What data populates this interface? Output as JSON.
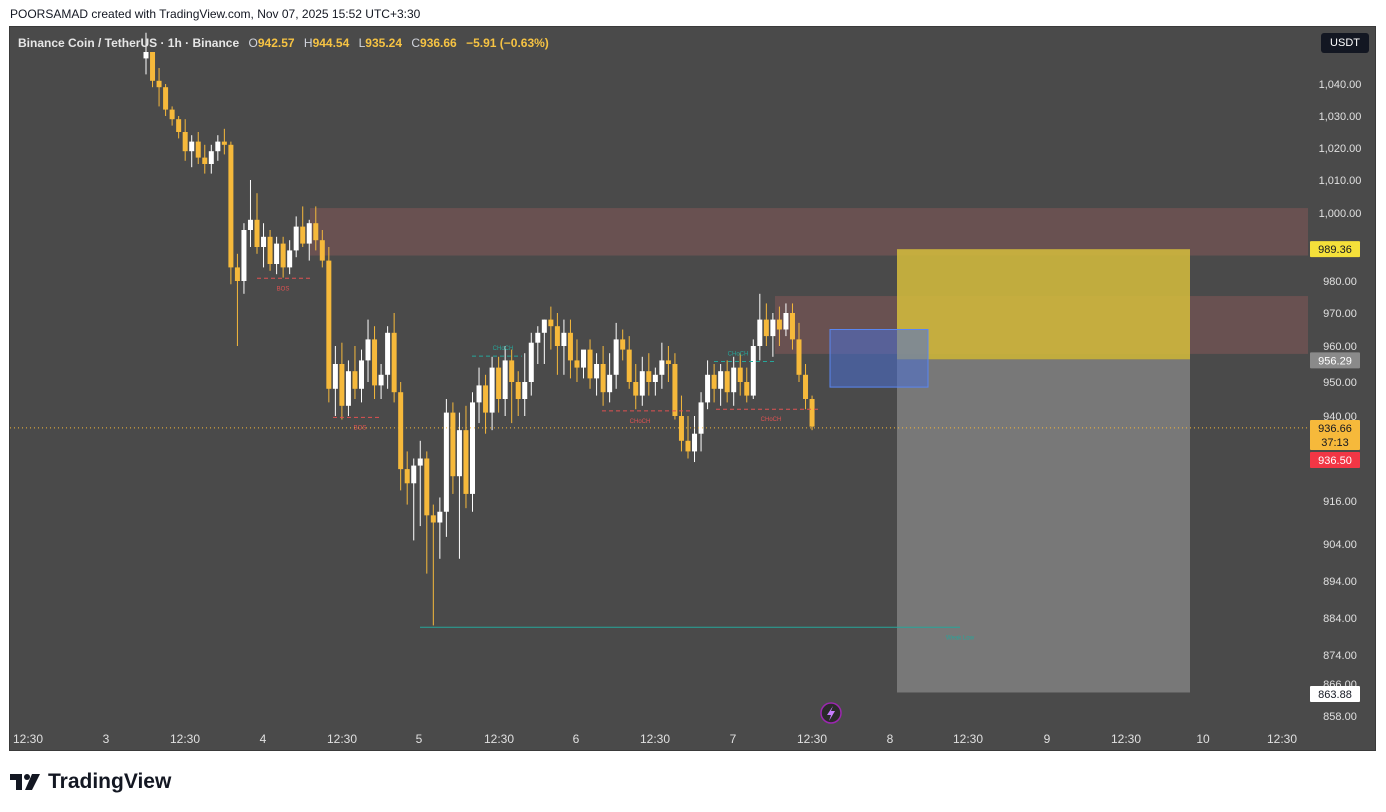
{
  "header": {
    "attribution": "POORSAMAD created with TradingView.com, Nov 07, 2025 15:52 UTC+3:30"
  },
  "legend": {
    "symbol": "Binance Coin / TetherUS · 1h · Binance",
    "o_label": "O",
    "o": "942.57",
    "h_label": "H",
    "h": "944.54",
    "l_label": "L",
    "l": "935.24",
    "c_label": "C",
    "c": "936.66",
    "change": "−5.91 (−0.63%)"
  },
  "currency_button": "USDT",
  "brand": "TradingView",
  "colors": {
    "up": "#ffffff",
    "down": "#f6b93b",
    "zone": "#6e5252",
    "long_box": "#d6bd3c",
    "stop_box": "#7a7a7a",
    "fvg": "#4a6fd3",
    "bg": "#4a4a4a"
  },
  "chart_data": {
    "type": "candlestick",
    "symbol": "BNBUSDT",
    "interval": "1h",
    "x_tick_labels": [
      "12:30",
      "3",
      "12:30",
      "4",
      "12:30",
      "5",
      "12:30",
      "6",
      "12:30",
      "7",
      "12:30",
      "8",
      "12:30",
      "9",
      "12:30",
      "10",
      "12:30"
    ],
    "y_tick_labels": [
      "1,040.00",
      "1,030.00",
      "1,020.00",
      "1,010.00",
      "1,000.00",
      "980.00",
      "970.00",
      "960.00",
      "950.00",
      "940.00",
      "916.00",
      "904.00",
      "894.00",
      "884.00",
      "874.00",
      "866.00",
      "858.00"
    ],
    "price_tags": [
      {
        "value": "989.36",
        "kind": "target"
      },
      {
        "value": "956.29",
        "kind": "entry"
      },
      {
        "value": "936.66",
        "kind": "last"
      },
      {
        "value": "37:13",
        "kind": "countdown"
      },
      {
        "value": "936.50",
        "kind": "bid"
      },
      {
        "value": "863.88",
        "kind": "stop"
      }
    ],
    "annotations": [
      {
        "text": "BOS",
        "price": 980.8
      },
      {
        "text": "BOS",
        "price": 939.6
      },
      {
        "text": "CHoCH",
        "price": 957.2
      },
      {
        "text": "CHoCH",
        "price": 941.5
      },
      {
        "text": "CHoCH",
        "price": 955.7
      },
      {
        "text": "CHoCH",
        "price": 942.0
      },
      {
        "text": "Weak Low",
        "price": 881.5
      }
    ],
    "zones": [
      {
        "name": "supply-zone-1",
        "from": 987.5,
        "to": 1001.5
      },
      {
        "name": "supply-zone-2",
        "from": 957.8,
        "to": 975.3
      },
      {
        "name": "fvg-box",
        "from": 948.5,
        "to": 965.0
      },
      {
        "name": "take-profit-box",
        "from": 956.29,
        "to": 989.36
      },
      {
        "name": "stop-box",
        "from": 863.88,
        "to": 956.29
      }
    ],
    "candles": [
      [
        1048,
        1056,
        1043,
        1050
      ],
      [
        1050,
        1050,
        1039,
        1041
      ],
      [
        1041,
        1045,
        1033,
        1039
      ],
      [
        1039,
        1040,
        1030,
        1032
      ],
      [
        1032,
        1033,
        1027,
        1029
      ],
      [
        1029,
        1030,
        1023,
        1025
      ],
      [
        1025,
        1029,
        1016,
        1019
      ],
      [
        1019,
        1024,
        1014,
        1022
      ],
      [
        1022,
        1025,
        1015,
        1017
      ],
      [
        1017,
        1021,
        1012,
        1015
      ],
      [
        1015,
        1021,
        1012,
        1019
      ],
      [
        1019,
        1024,
        1016,
        1022
      ],
      [
        1022,
        1026,
        1018,
        1021
      ],
      [
        1021,
        1022,
        979,
        984
      ],
      [
        984,
        988,
        960,
        980
      ],
      [
        980,
        997,
        976,
        995
      ],
      [
        995,
        1010,
        990,
        998
      ],
      [
        998,
        1006,
        988,
        990
      ],
      [
        990,
        997,
        984,
        993
      ],
      [
        993,
        995,
        983,
        985
      ],
      [
        985,
        993,
        982,
        991
      ],
      [
        991,
        993,
        981,
        984
      ],
      [
        984,
        992,
        982,
        989
      ],
      [
        989,
        999,
        987,
        996
      ],
      [
        996,
        1002,
        990,
        991
      ],
      [
        991,
        998,
        986,
        997
      ],
      [
        997,
        1002,
        989,
        992
      ],
      [
        992,
        995,
        984,
        986
      ],
      [
        986,
        990,
        944,
        948
      ],
      [
        948,
        960,
        940,
        955
      ],
      [
        955,
        961,
        939,
        943
      ],
      [
        943,
        956,
        940,
        953
      ],
      [
        953,
        960,
        945,
        948
      ],
      [
        948,
        959,
        944,
        956
      ],
      [
        956,
        968,
        950,
        962
      ],
      [
        962,
        966,
        945,
        949
      ],
      [
        949,
        955,
        945,
        952
      ],
      [
        952,
        966,
        948,
        964
      ],
      [
        964,
        970,
        944,
        947
      ],
      [
        947,
        950,
        919,
        925
      ],
      [
        925,
        930,
        915,
        921
      ],
      [
        921,
        928,
        905,
        926
      ],
      [
        926,
        933,
        909,
        928
      ],
      [
        928,
        930,
        896,
        912
      ],
      [
        912,
        915,
        882,
        910
      ],
      [
        910,
        917,
        900,
        913
      ],
      [
        913,
        945,
        906,
        941
      ],
      [
        941,
        944,
        918,
        923
      ],
      [
        923,
        941,
        900,
        936
      ],
      [
        936,
        943,
        914,
        918
      ],
      [
        918,
        947,
        913,
        944
      ],
      [
        944,
        954,
        938,
        949
      ],
      [
        949,
        952,
        935,
        941
      ],
      [
        941,
        957,
        936,
        954
      ],
      [
        954,
        957,
        941,
        945
      ],
      [
        945,
        960,
        940,
        956
      ],
      [
        956,
        959,
        938,
        950
      ],
      [
        950,
        953,
        940,
        945
      ],
      [
        945,
        958,
        940,
        950
      ],
      [
        950,
        964,
        946,
        961
      ],
      [
        961,
        966,
        955,
        964
      ],
      [
        964,
        968,
        955,
        968
      ],
      [
        968,
        972,
        959,
        966
      ],
      [
        966,
        970,
        952,
        960
      ],
      [
        960,
        968,
        952,
        964
      ],
      [
        964,
        968,
        951,
        956
      ],
      [
        956,
        962,
        950,
        954
      ],
      [
        954,
        958,
        951,
        959
      ],
      [
        959,
        962,
        948,
        951
      ],
      [
        951,
        958,
        946,
        955
      ],
      [
        955,
        960,
        943,
        947
      ],
      [
        947,
        958,
        944,
        952
      ],
      [
        952,
        967,
        948,
        962
      ],
      [
        962,
        965,
        956,
        959
      ],
      [
        959,
        963,
        948,
        950
      ],
      [
        950,
        955,
        942,
        946
      ],
      [
        946,
        957,
        943,
        953
      ],
      [
        953,
        958,
        946,
        950
      ],
      [
        950,
        954,
        946,
        952
      ],
      [
        952,
        961,
        948,
        956
      ],
      [
        956,
        960,
        950,
        955
      ],
      [
        955,
        958,
        939,
        940
      ],
      [
        940,
        946,
        930,
        933
      ],
      [
        933,
        940,
        928,
        930
      ],
      [
        930,
        940,
        927,
        935
      ],
      [
        935,
        947,
        930,
        944
      ],
      [
        944,
        956,
        942,
        952
      ],
      [
        952,
        955,
        944,
        948
      ],
      [
        948,
        955,
        943,
        953
      ],
      [
        953,
        956,
        944,
        947
      ],
      [
        947,
        957,
        943,
        954
      ],
      [
        954,
        958,
        946,
        950
      ],
      [
        950,
        954,
        944,
        946
      ],
      [
        946,
        962,
        945,
        960
      ],
      [
        960,
        976,
        956,
        968
      ],
      [
        968,
        973,
        960,
        963
      ],
      [
        963,
        970,
        957,
        968
      ],
      [
        968,
        972,
        960,
        965
      ],
      [
        965,
        973,
        963,
        970
      ],
      [
        970,
        973,
        959,
        962
      ],
      [
        962,
        967,
        950,
        952
      ],
      [
        952,
        955,
        942,
        945
      ],
      [
        945,
        946,
        936,
        937
      ]
    ]
  }
}
